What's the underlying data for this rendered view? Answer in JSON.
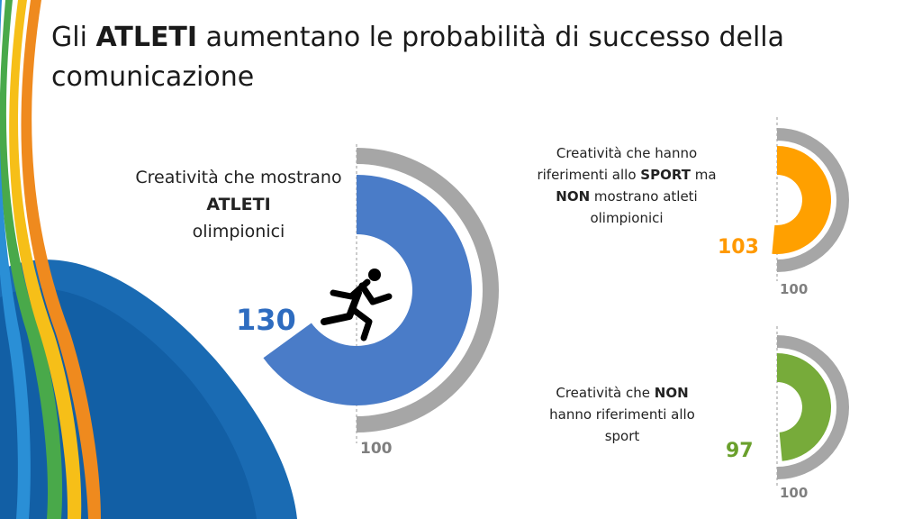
{
  "title": {
    "prefix": "Gli",
    "emph": "ATLETI",
    "rest": "aumentano le probabilità di successo della comunicazione"
  },
  "chart_data": [
    {
      "type": "radial-bar",
      "label_parts": [
        "Creatività che mostrano",
        "ATLETI",
        "olimpionici"
      ],
      "value": 130,
      "reference": 100,
      "scale_max": 200,
      "color": "#4a7cc8",
      "ref_color": "#a6a6a6",
      "icon": "runner-icon"
    },
    {
      "type": "radial-bar",
      "label_parts": [
        "Creatività che hanno riferimenti allo",
        "SPORT",
        "ma",
        "NON",
        "mostrano atleti olimpionici"
      ],
      "value": 103,
      "reference": 100,
      "scale_max": 200,
      "color": "#ffa000",
      "ref_color": "#a6a6a6"
    },
    {
      "type": "radial-bar",
      "label_parts": [
        "Creatività che",
        "NON",
        "hanno riferimenti allo sport"
      ],
      "value": 97,
      "reference": 100,
      "scale_max": 200,
      "color": "#77ab3a",
      "ref_color": "#a6a6a6"
    }
  ],
  "colors": {
    "blue": "#4a7cc8",
    "orange": "#ffa000",
    "green": "#77ab3a",
    "gray": "#a6a6a6"
  }
}
